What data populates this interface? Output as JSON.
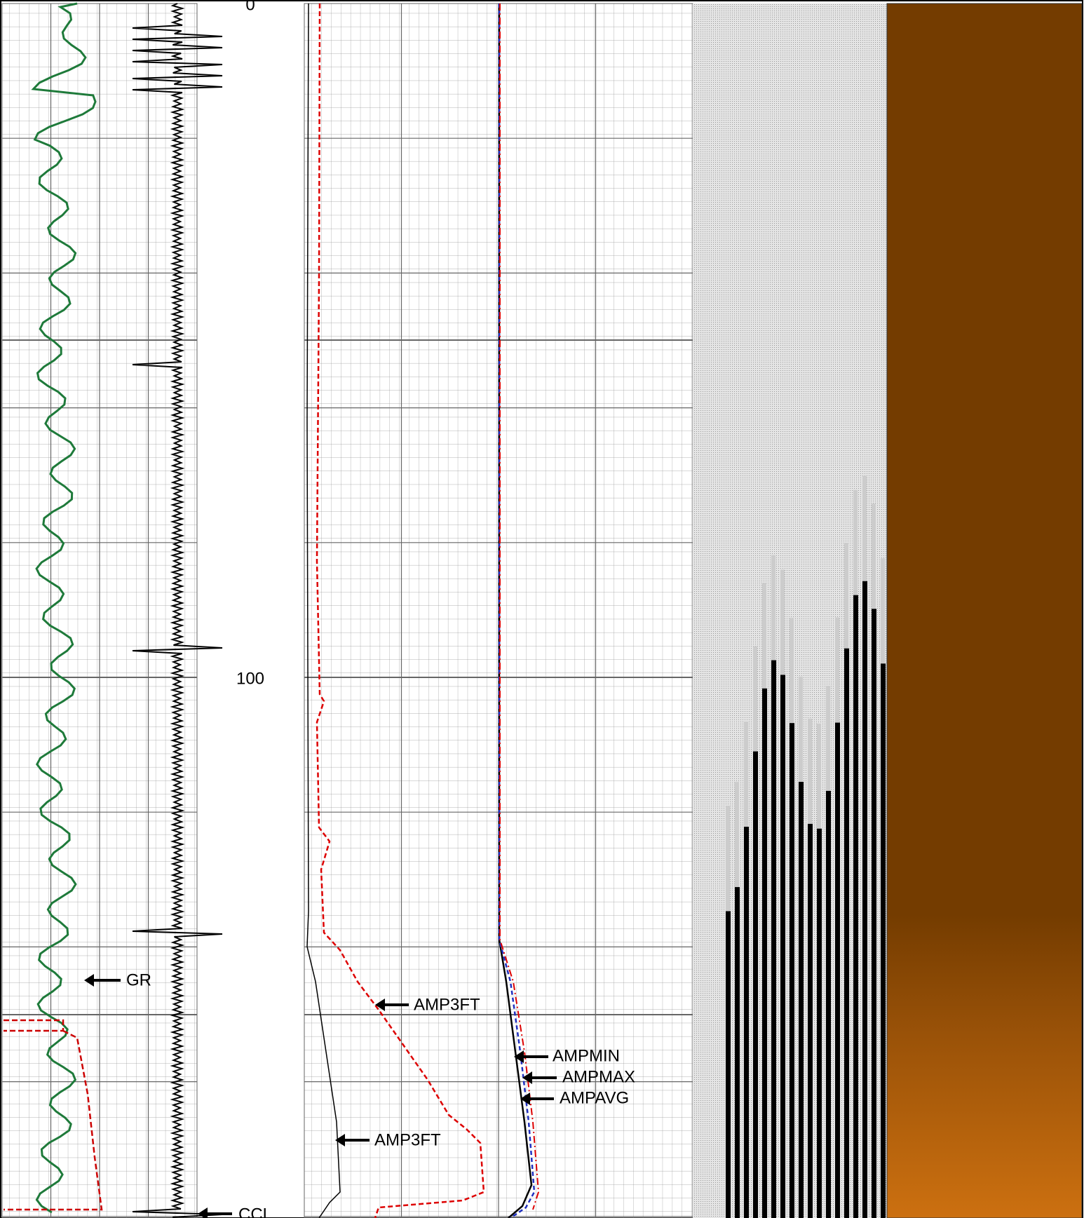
{
  "depth_track": {
    "labels": [
      0,
      100
    ]
  },
  "curve_labels": {
    "gr": "GR",
    "ccl": "CCL",
    "amp3ft_upper": "AMP3FT",
    "amp3ft_lower": "AMP3FT",
    "ampmin": "AMPMIN",
    "ampmax": "AMPMAX",
    "ampavg": "AMPAVG"
  }
}
